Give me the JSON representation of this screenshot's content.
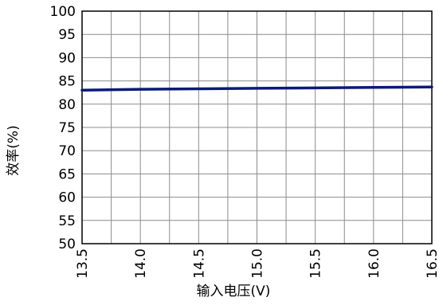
{
  "chart_data": {
    "type": "line",
    "xlabel": "输入电压(V)",
    "ylabel": "效率(%)",
    "xlim": [
      13.5,
      16.5
    ],
    "ylim": [
      50,
      100
    ],
    "x_ticks": [
      "13.5",
      "14.0",
      "14.5",
      "15.0",
      "15.5",
      "16.0",
      "16.5"
    ],
    "y_ticks": [
      "50",
      "55",
      "60",
      "65",
      "70",
      "75",
      "80",
      "85",
      "90",
      "95",
      "100"
    ],
    "x_grid_step": 0.25,
    "y_grid_step": 5,
    "grid": true,
    "series": [
      {
        "color": "#0b1a78",
        "x": [
          13.5,
          14.0,
          14.5,
          15.0,
          15.5,
          16.0,
          16.5
        ],
        "y": [
          83.0,
          83.2,
          83.3,
          83.4,
          83.5,
          83.6,
          83.7
        ]
      }
    ]
  }
}
